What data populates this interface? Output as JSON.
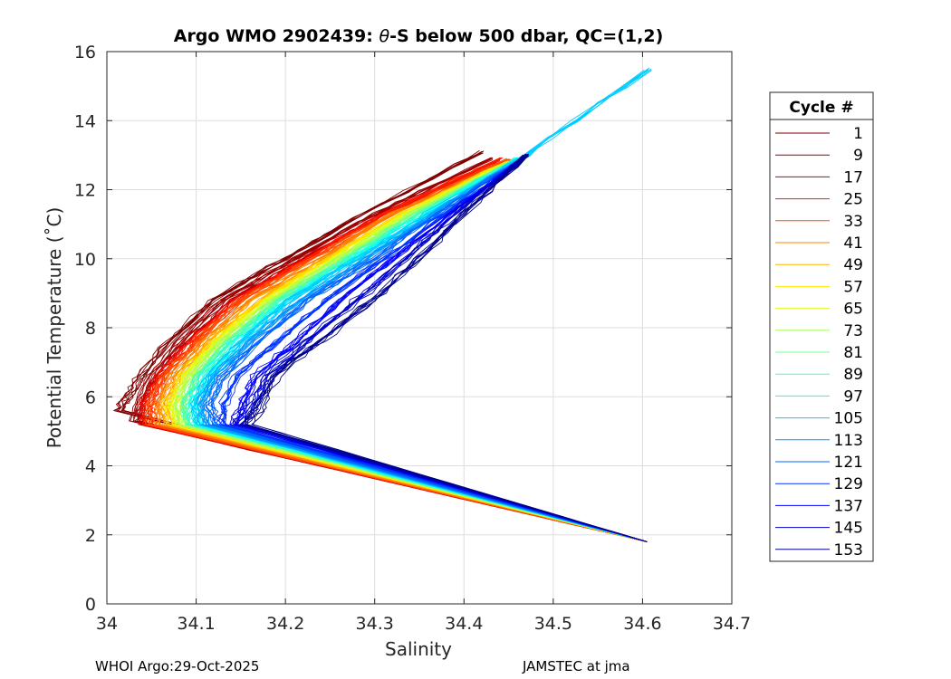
{
  "chart_data": {
    "type": "line",
    "title_prefix": "Argo WMO 2902439: ",
    "title_symbol": "θ",
    "title_suffix": "-S below 500 dbar,  QC=(1,2)",
    "xlabel": "Salinity",
    "ylabel": "Potential Temperature (˚C)",
    "xlim": [
      34.0,
      34.7
    ],
    "ylim": [
      0,
      16
    ],
    "xticks": [
      "34",
      "34.1",
      "34.2",
      "34.3",
      "34.4",
      "34.5",
      "34.6",
      "34.7"
    ],
    "yticks": [
      "0",
      "2",
      "4",
      "6",
      "8",
      "10",
      "12",
      "14",
      "16"
    ],
    "grid": true,
    "legend_position": "outside-right",
    "legend_title": "Cycle #",
    "legend_entries": [
      "1",
      "9",
      "17",
      "25",
      "33",
      "41",
      "49",
      "57",
      "65",
      "73",
      "81",
      "89",
      "97",
      "105",
      "113",
      "121",
      "129",
      "137",
      "145",
      "153"
    ],
    "legend_colors": [
      "#800000",
      "#9b0000",
      "#cc0000",
      "#ff1a00",
      "#ff4d00",
      "#ff8000",
      "#ffb300",
      "#ffe600",
      "#d9ff26",
      "#a6ff59",
      "#73ff8c",
      "#40ffbf",
      "#0dfff2",
      "#00ccff",
      "#0099ff",
      "#0066ff",
      "#0033ff",
      "#0000ff",
      "#0000cc",
      "#00008f"
    ],
    "series": [
      {
        "cycle": 1,
        "points": [
          [
            34.015,
            5.6
          ],
          [
            34.025,
            6.0
          ],
          [
            34.04,
            6.6
          ],
          [
            34.07,
            7.6
          ],
          [
            34.12,
            8.8
          ],
          [
            34.2,
            10.0
          ],
          [
            34.28,
            11.2
          ],
          [
            34.42,
            13.1
          ]
        ]
      },
      {
        "cycle": 9,
        "points": [
          [
            34.03,
            5.3
          ],
          [
            34.035,
            5.8
          ],
          [
            34.05,
            6.6
          ],
          [
            34.08,
            7.6
          ],
          [
            34.13,
            8.8
          ],
          [
            34.21,
            10.0
          ],
          [
            34.3,
            11.3
          ],
          [
            34.43,
            12.9
          ]
        ]
      },
      {
        "cycle": 17,
        "points": [
          [
            34.04,
            5.2
          ],
          [
            34.04,
            5.8
          ],
          [
            34.055,
            6.6
          ],
          [
            34.09,
            7.6
          ],
          [
            34.14,
            8.8
          ],
          [
            34.22,
            10.0
          ],
          [
            34.31,
            11.3
          ],
          [
            34.44,
            12.8
          ]
        ]
      },
      {
        "cycle": 25,
        "points": [
          [
            34.045,
            5.2
          ],
          [
            34.045,
            5.8
          ],
          [
            34.06,
            6.6
          ],
          [
            34.095,
            7.6
          ],
          [
            34.145,
            8.8
          ],
          [
            34.225,
            10.0
          ],
          [
            34.31,
            11.3
          ],
          [
            34.44,
            12.9
          ]
        ]
      },
      {
        "cycle": 33,
        "points": [
          [
            34.05,
            5.2
          ],
          [
            34.05,
            5.8
          ],
          [
            34.065,
            6.6
          ],
          [
            34.1,
            7.6
          ],
          [
            34.15,
            8.8
          ],
          [
            34.23,
            10.0
          ],
          [
            34.32,
            11.3
          ],
          [
            34.45,
            12.9
          ]
        ]
      },
      {
        "cycle": 41,
        "points": [
          [
            34.06,
            5.2
          ],
          [
            34.06,
            5.8
          ],
          [
            34.075,
            6.6
          ],
          [
            34.11,
            7.6
          ],
          [
            34.16,
            8.8
          ],
          [
            34.24,
            10.0
          ],
          [
            34.32,
            11.3
          ],
          [
            34.45,
            12.8
          ]
        ]
      },
      {
        "cycle": 49,
        "points": [
          [
            34.07,
            5.2
          ],
          [
            34.065,
            5.8
          ],
          [
            34.08,
            6.6
          ],
          [
            34.115,
            7.6
          ],
          [
            34.17,
            8.8
          ],
          [
            34.245,
            10.0
          ],
          [
            34.33,
            11.3
          ],
          [
            34.45,
            12.8
          ]
        ]
      },
      {
        "cycle": 57,
        "points": [
          [
            34.075,
            5.2
          ],
          [
            34.07,
            5.8
          ],
          [
            34.085,
            6.6
          ],
          [
            34.12,
            7.6
          ],
          [
            34.175,
            8.8
          ],
          [
            34.25,
            10.0
          ],
          [
            34.33,
            11.3
          ],
          [
            34.45,
            12.8
          ]
        ]
      },
      {
        "cycle": 65,
        "points": [
          [
            34.08,
            5.2
          ],
          [
            34.075,
            5.8
          ],
          [
            34.09,
            6.6
          ],
          [
            34.125,
            7.6
          ],
          [
            34.18,
            8.8
          ],
          [
            34.255,
            10.0
          ],
          [
            34.335,
            11.3
          ],
          [
            34.45,
            12.8
          ]
        ]
      },
      {
        "cycle": 73,
        "points": [
          [
            34.085,
            5.2
          ],
          [
            34.08,
            5.8
          ],
          [
            34.095,
            6.6
          ],
          [
            34.13,
            7.6
          ],
          [
            34.185,
            8.8
          ],
          [
            34.26,
            10.0
          ],
          [
            34.34,
            11.3
          ],
          [
            34.45,
            12.8
          ]
        ]
      },
      {
        "cycle": 81,
        "points": [
          [
            34.09,
            5.2
          ],
          [
            34.085,
            5.8
          ],
          [
            34.1,
            6.6
          ],
          [
            34.135,
            7.6
          ],
          [
            34.19,
            8.8
          ],
          [
            34.265,
            10.0
          ],
          [
            34.345,
            11.3
          ],
          [
            34.46,
            12.9
          ]
        ]
      },
      {
        "cycle": 89,
        "points": [
          [
            34.095,
            5.2
          ],
          [
            34.09,
            5.8
          ],
          [
            34.105,
            6.6
          ],
          [
            34.14,
            7.6
          ],
          [
            34.195,
            8.8
          ],
          [
            34.27,
            10.0
          ],
          [
            34.35,
            11.3
          ],
          [
            34.46,
            12.9
          ]
        ]
      },
      {
        "cycle": 97,
        "points": [
          [
            34.1,
            5.2
          ],
          [
            34.095,
            5.8
          ],
          [
            34.11,
            6.6
          ],
          [
            34.145,
            7.6
          ],
          [
            34.2,
            8.8
          ],
          [
            34.275,
            10.0
          ],
          [
            34.355,
            11.3
          ],
          [
            34.46,
            12.9
          ]
        ]
      },
      {
        "cycle": 105,
        "points": [
          [
            34.105,
            5.2
          ],
          [
            34.1,
            5.8
          ],
          [
            34.115,
            6.6
          ],
          [
            34.15,
            7.6
          ],
          [
            34.205,
            8.8
          ],
          [
            34.28,
            10.0
          ],
          [
            34.36,
            11.3
          ],
          [
            34.47,
            13.0
          ],
          [
            34.607,
            15.5
          ]
        ]
      },
      {
        "cycle": 113,
        "points": [
          [
            34.11,
            5.2
          ],
          [
            34.105,
            5.8
          ],
          [
            34.12,
            6.6
          ],
          [
            34.16,
            7.6
          ],
          [
            34.215,
            8.8
          ],
          [
            34.29,
            10.0
          ],
          [
            34.365,
            11.3
          ],
          [
            34.47,
            13.0
          ]
        ]
      },
      {
        "cycle": 121,
        "points": [
          [
            34.12,
            5.2
          ],
          [
            34.115,
            5.8
          ],
          [
            34.13,
            6.6
          ],
          [
            34.17,
            7.6
          ],
          [
            34.225,
            8.8
          ],
          [
            34.3,
            10.0
          ],
          [
            34.37,
            11.3
          ],
          [
            34.47,
            13.0
          ]
        ]
      },
      {
        "cycle": 129,
        "points": [
          [
            34.13,
            5.2
          ],
          [
            34.13,
            5.8
          ],
          [
            34.145,
            6.6
          ],
          [
            34.19,
            7.6
          ],
          [
            34.245,
            8.8
          ],
          [
            34.31,
            10.0
          ],
          [
            34.38,
            11.3
          ],
          [
            34.47,
            13.0
          ]
        ]
      },
      {
        "cycle": 137,
        "points": [
          [
            34.14,
            5.2
          ],
          [
            34.15,
            5.8
          ],
          [
            34.165,
            6.6
          ],
          [
            34.21,
            7.6
          ],
          [
            34.26,
            8.8
          ],
          [
            34.32,
            10.0
          ],
          [
            34.385,
            11.3
          ],
          [
            34.47,
            13.0
          ]
        ]
      },
      {
        "cycle": 145,
        "points": [
          [
            34.15,
            5.2
          ],
          [
            34.165,
            5.8
          ],
          [
            34.18,
            6.6
          ],
          [
            34.225,
            7.6
          ],
          [
            34.28,
            8.8
          ],
          [
            34.335,
            10.0
          ],
          [
            34.39,
            11.3
          ],
          [
            34.47,
            13.0
          ]
        ]
      },
      {
        "cycle": 153,
        "points": [
          [
            34.16,
            5.2
          ],
          [
            34.175,
            5.8
          ],
          [
            34.19,
            6.6
          ],
          [
            34.24,
            7.6
          ],
          [
            34.3,
            8.8
          ],
          [
            34.35,
            10.0
          ],
          [
            34.4,
            11.3
          ],
          [
            34.47,
            13.0
          ]
        ]
      }
    ],
    "deep_end": [
      34.605,
      1.8
    ]
  },
  "footer": {
    "left": "WHOI Argo:29-Oct-2025",
    "right": "JAMSTEC at jma"
  }
}
